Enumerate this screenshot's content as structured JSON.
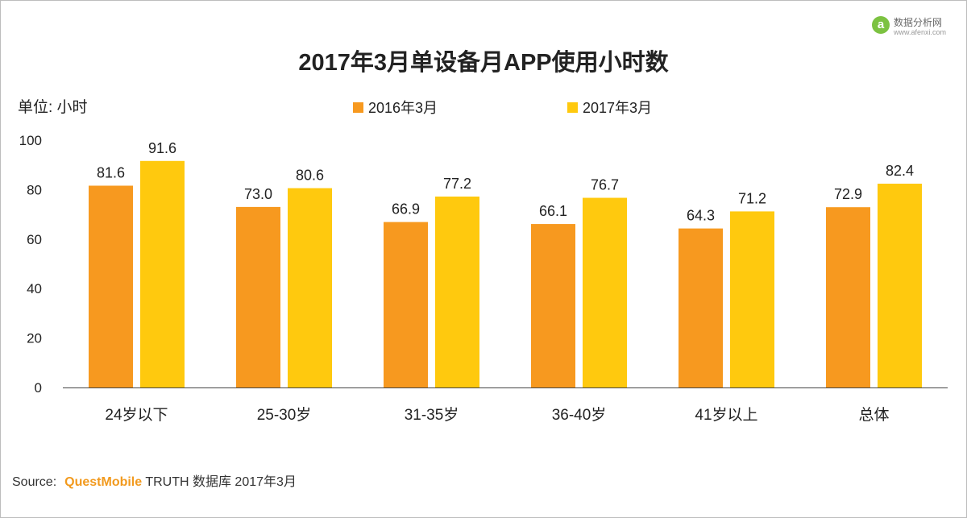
{
  "colors": {
    "series_2016": "#f7991f",
    "series_2017": "#ffc90e",
    "axis": "#444444",
    "text": "#222222",
    "source_brand": "#f29a1e",
    "watermark": "#7cc241"
  },
  "watermark": {
    "logo_glyph": "a",
    "logo_icon": "afenxi-logo-icon",
    "name": "数据分析网",
    "url": "www.afenxi.com"
  },
  "source": {
    "label": "Source:",
    "brand": "QuestMobile",
    "rest": "TRUTH 数据库 2017年3月"
  },
  "chart_data": {
    "type": "bar",
    "title": "2017年3月单设备月APP使用小时数",
    "unit_label": "单位: 小时",
    "xlabel": "",
    "ylabel": "",
    "ylim": [
      0,
      100
    ],
    "yticks": [
      0,
      20,
      40,
      60,
      80,
      100
    ],
    "grid": false,
    "legend_position": "top-center",
    "categories": [
      "24岁以下",
      "25-30岁",
      "31-35岁",
      "36-40岁",
      "41岁以上",
      "总体"
    ],
    "series": [
      {
        "name": "2016年3月",
        "values": [
          81.6,
          73.0,
          66.9,
          66.1,
          64.3,
          72.9
        ],
        "labels": [
          "81.6",
          "73.0",
          "66.9",
          "66.1",
          "64.3",
          "72.9"
        ]
      },
      {
        "name": "2017年3月",
        "values": [
          91.6,
          80.6,
          77.2,
          76.7,
          71.2,
          82.4
        ],
        "labels": [
          "91.6",
          "80.6",
          "77.2",
          "76.7",
          "71.2",
          "82.4"
        ]
      }
    ]
  }
}
